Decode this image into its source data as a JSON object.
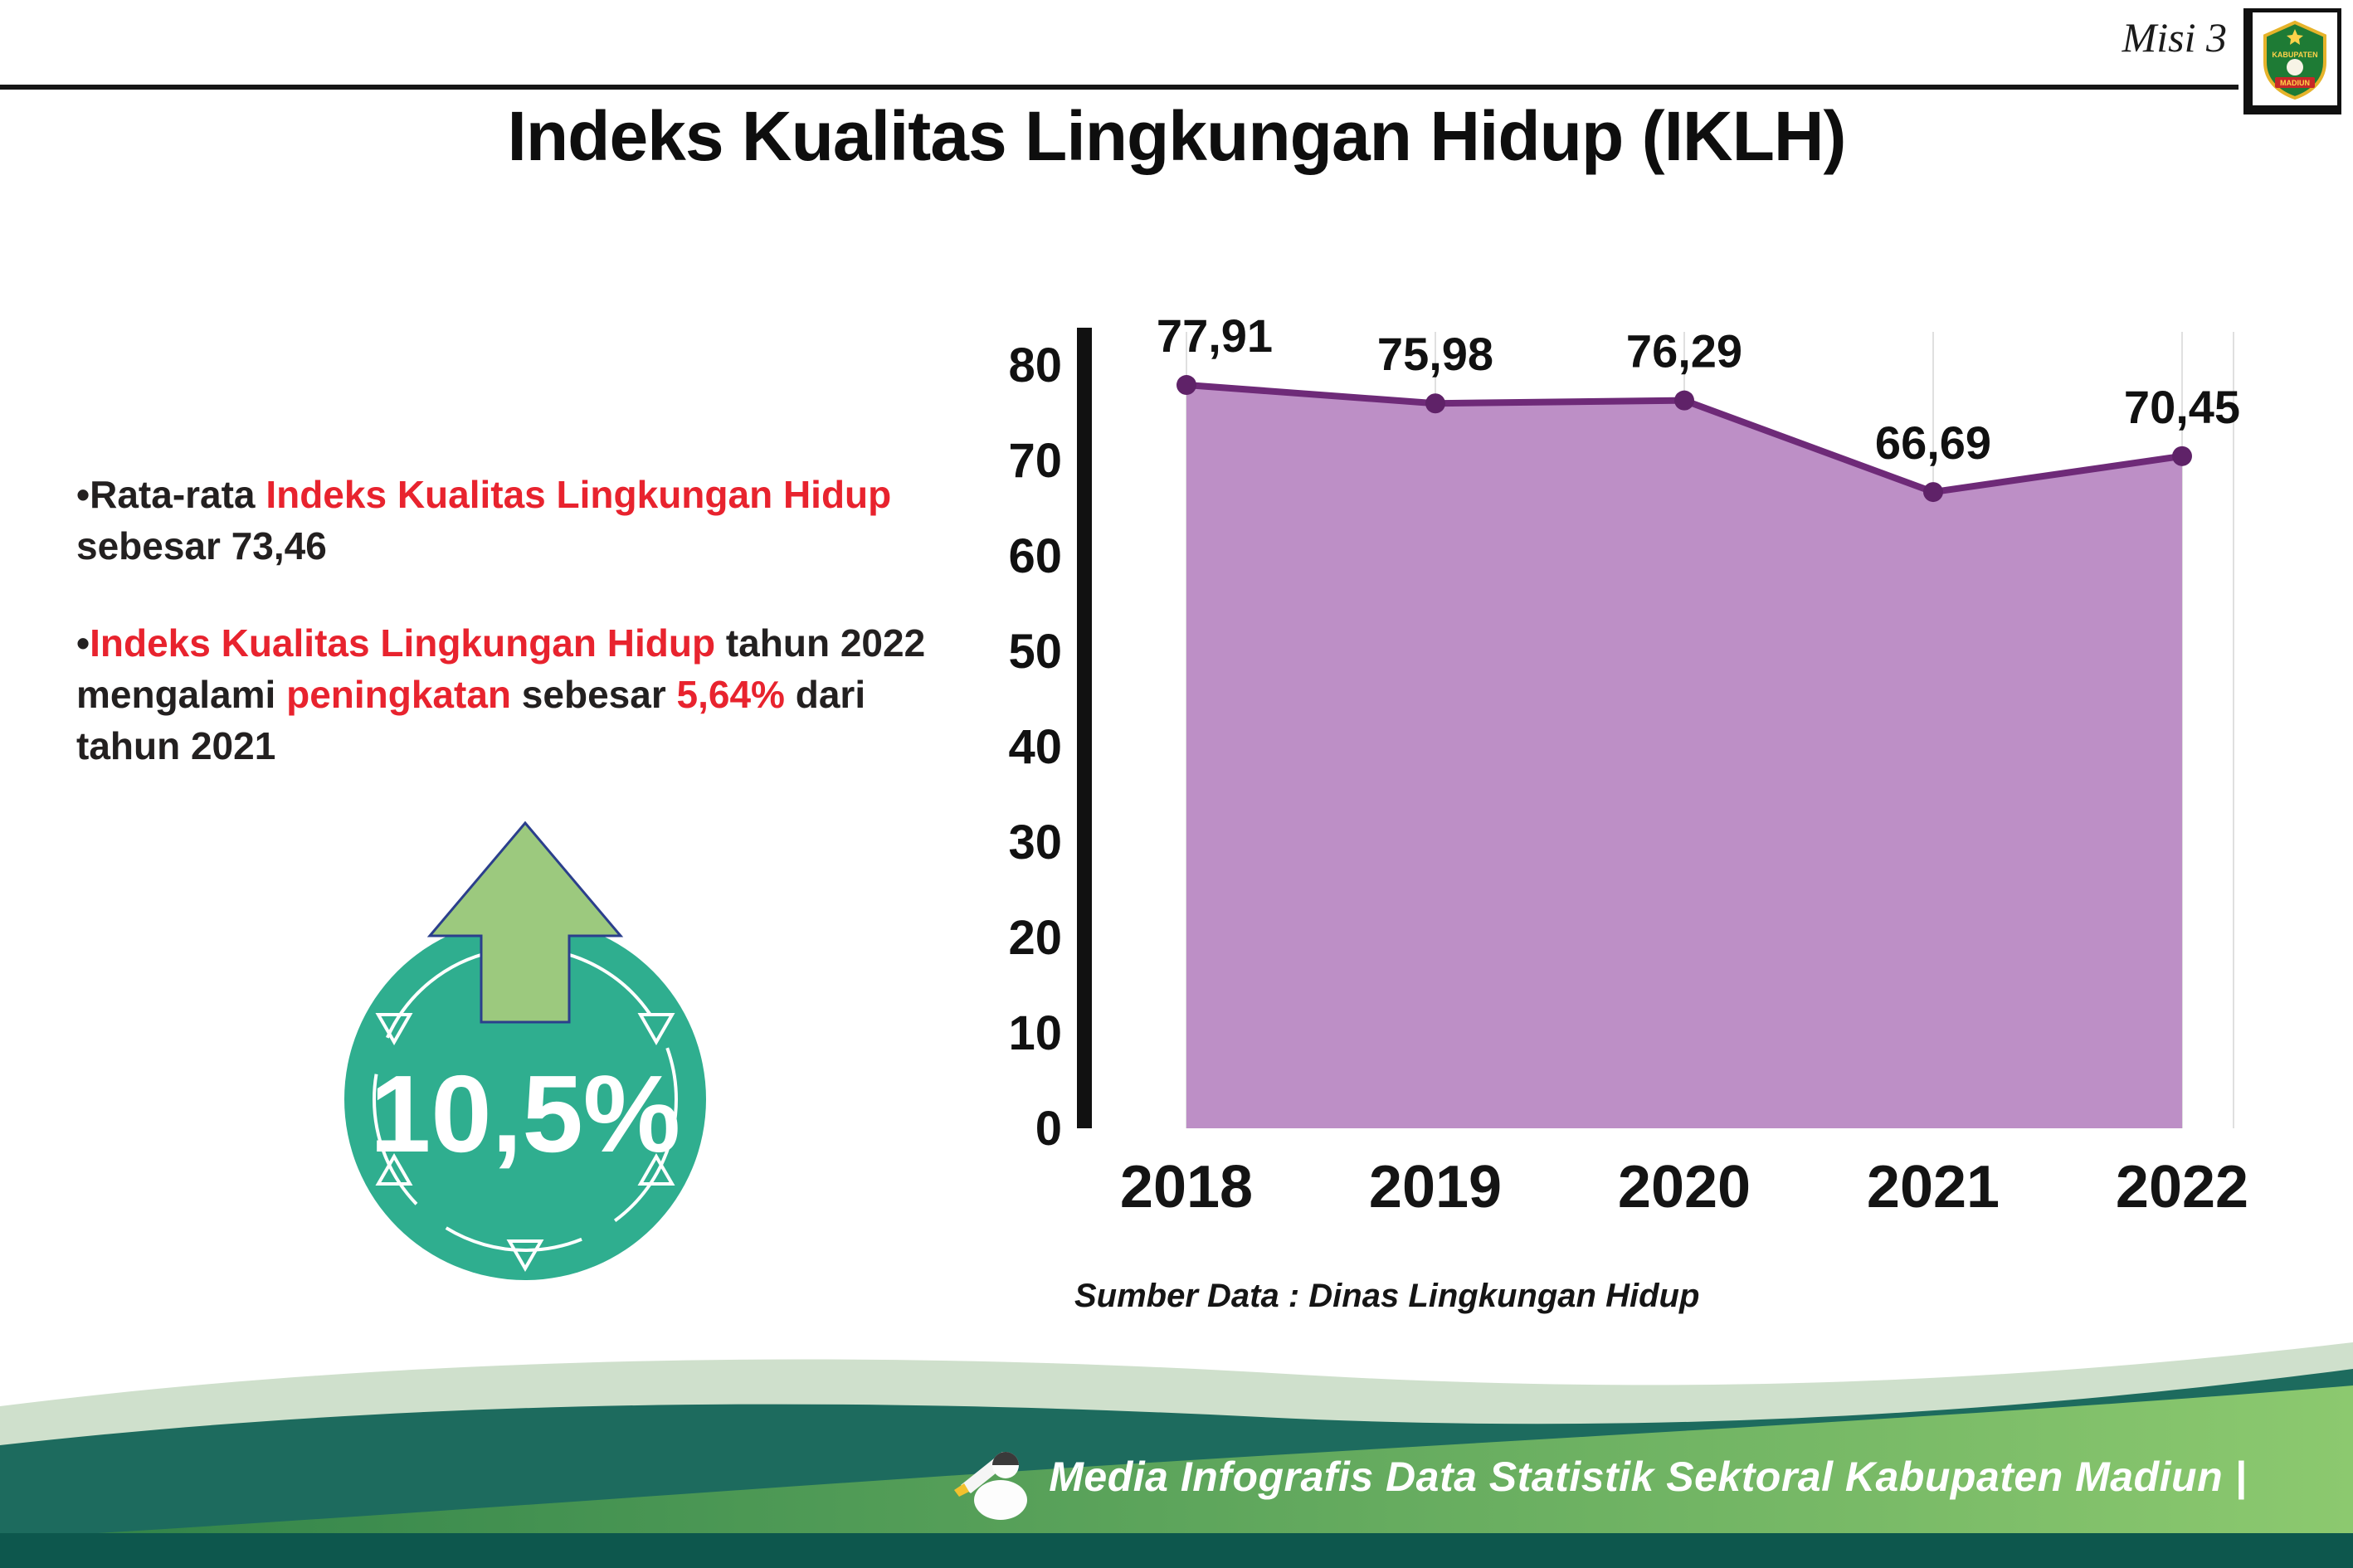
{
  "header": {
    "misi": "Misi 3",
    "title": "Indeks Kualitas Lingkungan Hidup (IKLH)",
    "logo_line1": "KABUPATEN",
    "logo_line2": "MADIUN"
  },
  "bullets": {
    "marker": "•",
    "b1_seg1": "Rata-rata ",
    "b1_seg2_red": "Indeks Kualitas Lingkungan Hidup",
    "b1_seg3": " sebesar 73,46",
    "b2_seg1_red": "Indeks Kualitas Lingkungan Hidup",
    "b2_seg2": " tahun 2022 mengalami ",
    "b2_seg3_red": "peningkatan",
    "b2_seg4": " sebesar ",
    "b2_seg5_red": "5,64%",
    "b2_seg6": " dari tahun 2021"
  },
  "badge": {
    "value": "10,5%"
  },
  "chart_data": {
    "type": "area",
    "title": "Indeks Kualitas Lingkungan Hidup (IKLH)",
    "categories": [
      "2018",
      "2019",
      "2020",
      "2021",
      "2022"
    ],
    "values": [
      77.91,
      75.98,
      76.29,
      66.69,
      70.45
    ],
    "value_labels": [
      "77,91",
      "75,98",
      "76,29",
      "66,69",
      "70,45"
    ],
    "ylim": [
      0,
      80
    ],
    "yticks": [
      0,
      10,
      20,
      30,
      40,
      50,
      60,
      70,
      80
    ],
    "grid": "faint vertical gridlines at each year",
    "legend": "none",
    "source": "Sumber Data : Dinas Lingkungan Hidup",
    "colors": {
      "area_fill": "#bd8fc6",
      "line": "#6e2a78",
      "point": "#5f2268",
      "axis": "#111111",
      "gridline": "#e0e0e0"
    }
  },
  "footer": {
    "credit": "Media Infografis Data Statistik Sektoral Kabupaten Madiun |"
  },
  "colors": {
    "red_text": "#e8232e",
    "badge_circle": "#2fae8f",
    "badge_arrow": "#9cc97e",
    "footer_pale": "#cfe0cc",
    "footer_dark_teal": "#1d6b5e",
    "footer_green_left": "#2e8148",
    "footer_green_right": "#8cc96f",
    "footer_bottom_bar": "#0d574d"
  }
}
